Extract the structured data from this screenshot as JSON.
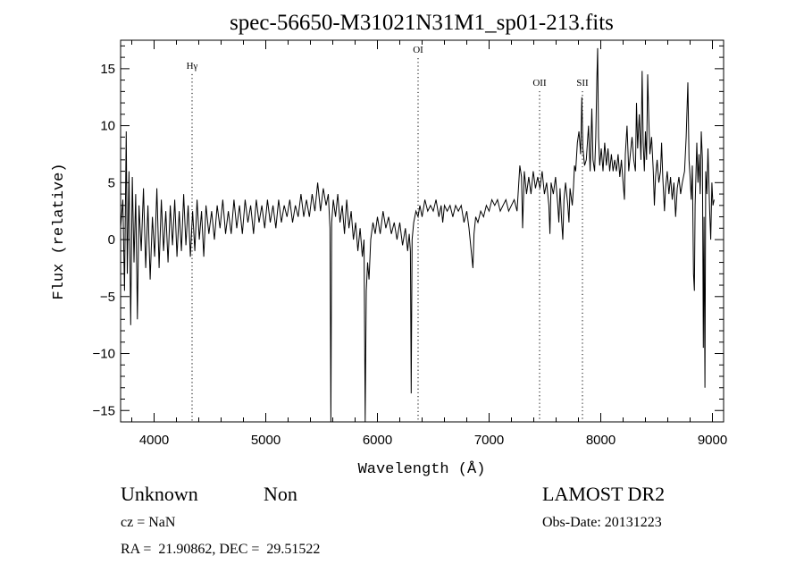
{
  "chart_data": {
    "type": "line",
    "title": "spec-56650-M31021N31M1_sp01-213.fits",
    "xlabel": "Wavelength (Å)",
    "ylabel": "Flux (relative)",
    "xlim": [
      3700,
      9100
    ],
    "ylim": [
      -16,
      17.5
    ],
    "x_ticks": [
      4000,
      5000,
      6000,
      7000,
      8000,
      9000
    ],
    "y_ticks": [
      -15,
      -10,
      -5,
      0,
      5,
      10,
      15
    ],
    "grid": false,
    "line_color": "#000000",
    "lines": [
      {
        "label": "Hγ",
        "x": 4340,
        "y_label": 15
      },
      {
        "label": "OI",
        "x": 6364,
        "y_label": 16.4
      },
      {
        "label": "OII",
        "x": 7452,
        "y_label": 13.5
      },
      {
        "label": "SII",
        "x": 7836,
        "y_label": 13.5
      }
    ],
    "spectrum": [
      [
        3700,
        1.0
      ],
      [
        3720,
        3.5
      ],
      [
        3735,
        -4.5
      ],
      [
        3750,
        9.5
      ],
      [
        3760,
        -3.0
      ],
      [
        3775,
        6.0
      ],
      [
        3790,
        -7.5
      ],
      [
        3805,
        5.5
      ],
      [
        3820,
        -2.0
      ],
      [
        3835,
        4.0
      ],
      [
        3850,
        -7.0
      ],
      [
        3865,
        3.0
      ],
      [
        3885,
        -1.0
      ],
      [
        3905,
        4.5
      ],
      [
        3925,
        -2.5
      ],
      [
        3945,
        3.0
      ],
      [
        3965,
        -3.5
      ],
      [
        3985,
        2.0
      ],
      [
        4005,
        -1.5
      ],
      [
        4025,
        4.5
      ],
      [
        4045,
        -2.5
      ],
      [
        4065,
        3.5
      ],
      [
        4085,
        -1.0
      ],
      [
        4105,
        2.5
      ],
      [
        4125,
        -2.0
      ],
      [
        4145,
        3.0
      ],
      [
        4165,
        -0.5
      ],
      [
        4185,
        3.5
      ],
      [
        4205,
        -1.5
      ],
      [
        4225,
        2.5
      ],
      [
        4245,
        -1.0
      ],
      [
        4265,
        4.0
      ],
      [
        4285,
        -0.5
      ],
      [
        4305,
        3.0
      ],
      [
        4325,
        -1.5
      ],
      [
        4345,
        2.5
      ],
      [
        4365,
        -1.0
      ],
      [
        4385,
        3.5
      ],
      [
        4405,
        0.0
      ],
      [
        4425,
        2.5
      ],
      [
        4445,
        -1.5
      ],
      [
        4465,
        3.0
      ],
      [
        4490,
        0.5
      ],
      [
        4515,
        2.5
      ],
      [
        4540,
        0.0
      ],
      [
        4565,
        3.0
      ],
      [
        4590,
        1.0
      ],
      [
        4615,
        3.5
      ],
      [
        4640,
        0.5
      ],
      [
        4665,
        2.5
      ],
      [
        4690,
        0.5
      ],
      [
        4715,
        3.5
      ],
      [
        4740,
        1.0
      ],
      [
        4765,
        3.0
      ],
      [
        4790,
        0.5
      ],
      [
        4815,
        3.5
      ],
      [
        4840,
        1.5
      ],
      [
        4865,
        3.0
      ],
      [
        4890,
        0.5
      ],
      [
        4915,
        3.5
      ],
      [
        4940,
        1.5
      ],
      [
        4965,
        3.0
      ],
      [
        4990,
        1.0
      ],
      [
        5015,
        3.5
      ],
      [
        5040,
        1.5
      ],
      [
        5065,
        3.0
      ],
      [
        5090,
        1.0
      ],
      [
        5115,
        3.5
      ],
      [
        5140,
        1.5
      ],
      [
        5165,
        3.0
      ],
      [
        5190,
        2.0
      ],
      [
        5215,
        3.5
      ],
      [
        5240,
        1.5
      ],
      [
        5265,
        3.0
      ],
      [
        5290,
        2.0
      ],
      [
        5315,
        4.0
      ],
      [
        5340,
        2.0
      ],
      [
        5365,
        3.5
      ],
      [
        5390,
        2.0
      ],
      [
        5415,
        4.0
      ],
      [
        5440,
        2.5
      ],
      [
        5465,
        5.0
      ],
      [
        5490,
        2.5
      ],
      [
        5515,
        4.5
      ],
      [
        5540,
        3.0
      ],
      [
        5560,
        4.0
      ],
      [
        5575,
        1.0
      ],
      [
        5583,
        -16.0
      ],
      [
        5590,
        1.5
      ],
      [
        5605,
        3.5
      ],
      [
        5625,
        2.0
      ],
      [
        5645,
        4.0
      ],
      [
        5665,
        1.5
      ],
      [
        5685,
        3.0
      ],
      [
        5705,
        0.5
      ],
      [
        5725,
        3.5
      ],
      [
        5745,
        1.0
      ],
      [
        5765,
        2.5
      ],
      [
        5785,
        0.0
      ],
      [
        5805,
        1.5
      ],
      [
        5825,
        -1.0
      ],
      [
        5845,
        1.0
      ],
      [
        5865,
        -1.5
      ],
      [
        5880,
        0.0
      ],
      [
        5890,
        -16.0
      ],
      [
        5900,
        -4.5
      ],
      [
        5912,
        -2.0
      ],
      [
        5925,
        -3.5
      ],
      [
        5940,
        0.0
      ],
      [
        5960,
        1.5
      ],
      [
        5980,
        0.5
      ],
      [
        6000,
        2.0
      ],
      [
        6025,
        0.5
      ],
      [
        6050,
        2.5
      ],
      [
        6075,
        1.0
      ],
      [
        6100,
        2.0
      ],
      [
        6125,
        0.5
      ],
      [
        6150,
        1.5
      ],
      [
        6175,
        0.0
      ],
      [
        6200,
        1.5
      ],
      [
        6225,
        -0.5
      ],
      [
        6250,
        1.0
      ],
      [
        6270,
        -1.0
      ],
      [
        6285,
        0.5
      ],
      [
        6295,
        -1.0
      ],
      [
        6302,
        -13.5
      ],
      [
        6310,
        0.0
      ],
      [
        6325,
        1.5
      ],
      [
        6345,
        2.5
      ],
      [
        6364,
        2.0
      ],
      [
        6380,
        3.0
      ],
      [
        6400,
        2.0
      ],
      [
        6425,
        3.5
      ],
      [
        6450,
        2.5
      ],
      [
        6475,
        3.0
      ],
      [
        6500,
        2.5
      ],
      [
        6525,
        3.5
      ],
      [
        6550,
        2.0
      ],
      [
        6570,
        3.0
      ],
      [
        6585,
        1.5
      ],
      [
        6600,
        3.0
      ],
      [
        6625,
        2.5
      ],
      [
        6650,
        3.0
      ],
      [
        6675,
        2.0
      ],
      [
        6700,
        3.0
      ],
      [
        6725,
        2.5
      ],
      [
        6750,
        3.0
      ],
      [
        6775,
        1.5
      ],
      [
        6800,
        2.5
      ],
      [
        6820,
        1.0
      ],
      [
        6840,
        -1.0
      ],
      [
        6855,
        -2.5
      ],
      [
        6865,
        0.5
      ],
      [
        6880,
        2.0
      ],
      [
        6900,
        1.5
      ],
      [
        6925,
        2.5
      ],
      [
        6950,
        2.0
      ],
      [
        6975,
        3.0
      ],
      [
        7000,
        2.5
      ],
      [
        7025,
        3.5
      ],
      [
        7050,
        3.0
      ],
      [
        7075,
        3.5
      ],
      [
        7100,
        2.5
      ],
      [
        7125,
        3.0
      ],
      [
        7150,
        3.5
      ],
      [
        7175,
        2.5
      ],
      [
        7200,
        3.0
      ],
      [
        7225,
        3.5
      ],
      [
        7250,
        2.5
      ],
      [
        7275,
        6.5
      ],
      [
        7290,
        5.5
      ],
      [
        7300,
        1.0
      ],
      [
        7315,
        6.0
      ],
      [
        7335,
        4.0
      ],
      [
        7355,
        5.5
      ],
      [
        7375,
        4.0
      ],
      [
        7395,
        6.0
      ],
      [
        7415,
        4.5
      ],
      [
        7435,
        5.5
      ],
      [
        7455,
        4.5
      ],
      [
        7475,
        6.0
      ],
      [
        7495,
        4.0
      ],
      [
        7515,
        5.0
      ],
      [
        7535,
        3.0
      ],
      [
        7545,
        0.5
      ],
      [
        7555,
        5.0
      ],
      [
        7575,
        4.0
      ],
      [
        7595,
        5.5
      ],
      [
        7615,
        3.0
      ],
      [
        7625,
        1.5
      ],
      [
        7635,
        4.5
      ],
      [
        7650,
        1.5
      ],
      [
        7660,
        0.0
      ],
      [
        7670,
        3.5
      ],
      [
        7685,
        5.0
      ],
      [
        7705,
        3.0
      ],
      [
        7715,
        1.5
      ],
      [
        7725,
        4.5
      ],
      [
        7745,
        3.0
      ],
      [
        7755,
        4.5
      ],
      [
        7765,
        6.5
      ],
      [
        7775,
        6.0
      ],
      [
        7790,
        8.5
      ],
      [
        7805,
        9.5
      ],
      [
        7820,
        7.5
      ],
      [
        7830,
        12.5
      ],
      [
        7840,
        8.0
      ],
      [
        7855,
        6.5
      ],
      [
        7870,
        7.0
      ],
      [
        7890,
        10.0
      ],
      [
        7905,
        6.0
      ],
      [
        7920,
        11.5
      ],
      [
        7930,
        7.0
      ],
      [
        7945,
        6.0
      ],
      [
        7955,
        9.0
      ],
      [
        7965,
        14.0
      ],
      [
        7972,
        16.8
      ],
      [
        7980,
        9.0
      ],
      [
        7990,
        6.5
      ],
      [
        8005,
        8.0
      ],
      [
        8020,
        6.0
      ],
      [
        8035,
        8.5
      ],
      [
        8050,
        6.5
      ],
      [
        8065,
        8.0
      ],
      [
        8080,
        6.0
      ],
      [
        8095,
        7.5
      ],
      [
        8110,
        6.0
      ],
      [
        8125,
        7.0
      ],
      [
        8140,
        6.0
      ],
      [
        8155,
        7.5
      ],
      [
        8170,
        5.5
      ],
      [
        8185,
        7.0
      ],
      [
        8200,
        5.0
      ],
      [
        8212,
        3.5
      ],
      [
        8220,
        7.5
      ],
      [
        8235,
        10.0
      ],
      [
        8250,
        6.0
      ],
      [
        8265,
        7.5
      ],
      [
        8280,
        9.0
      ],
      [
        8295,
        7.0
      ],
      [
        8310,
        6.0
      ],
      [
        8320,
        12.0
      ],
      [
        8330,
        8.0
      ],
      [
        8345,
        11.0
      ],
      [
        8360,
        7.0
      ],
      [
        8370,
        14.8
      ],
      [
        8380,
        8.5
      ],
      [
        8390,
        6.0
      ],
      [
        8400,
        9.5
      ],
      [
        8410,
        7.0
      ],
      [
        8420,
        14.5
      ],
      [
        8430,
        10.5
      ],
      [
        8440,
        7.5
      ],
      [
        8455,
        9.0
      ],
      [
        8470,
        6.0
      ],
      [
        8480,
        3.0
      ],
      [
        8490,
        5.5
      ],
      [
        8505,
        7.0
      ],
      [
        8520,
        5.0
      ],
      [
        8535,
        6.0
      ],
      [
        8545,
        8.5
      ],
      [
        8555,
        5.5
      ],
      [
        8570,
        2.5
      ],
      [
        8580,
        4.5
      ],
      [
        8595,
        6.0
      ],
      [
        8610,
        4.0
      ],
      [
        8625,
        5.5
      ],
      [
        8640,
        3.5
      ],
      [
        8655,
        5.0
      ],
      [
        8670,
        2.0
      ],
      [
        8685,
        4.5
      ],
      [
        8700,
        5.5
      ],
      [
        8715,
        4.0
      ],
      [
        8730,
        5.0
      ],
      [
        8750,
        6.0
      ],
      [
        8765,
        9.0
      ],
      [
        8780,
        13.8
      ],
      [
        8790,
        7.0
      ],
      [
        8800,
        5.5
      ],
      [
        8810,
        3.5
      ],
      [
        8820,
        6.5
      ],
      [
        8830,
        -3.0
      ],
      [
        8838,
        -4.5
      ],
      [
        8845,
        3.0
      ],
      [
        8860,
        8.5
      ],
      [
        8870,
        5.0
      ],
      [
        8880,
        7.5
      ],
      [
        8890,
        4.0
      ],
      [
        8900,
        9.5
      ],
      [
        8910,
        7.0
      ],
      [
        8918,
        -9.5
      ],
      [
        8925,
        2.0
      ],
      [
        8933,
        -13.0
      ],
      [
        8940,
        6.0
      ],
      [
        8950,
        4.0
      ],
      [
        8960,
        8.0
      ],
      [
        8975,
        2.5
      ],
      [
        8985,
        0.0
      ],
      [
        8995,
        5.0
      ],
      [
        9005,
        3.0
      ],
      [
        9015,
        3.5
      ]
    ]
  },
  "footer": {
    "object_class": "Unknown",
    "subclass": "Non",
    "survey": "LAMOST DR2",
    "cz": "cz = NaN",
    "obs_date": "Obs-Date: 20131223",
    "coords": "RA =  21.90862, DEC =  29.51522"
  }
}
